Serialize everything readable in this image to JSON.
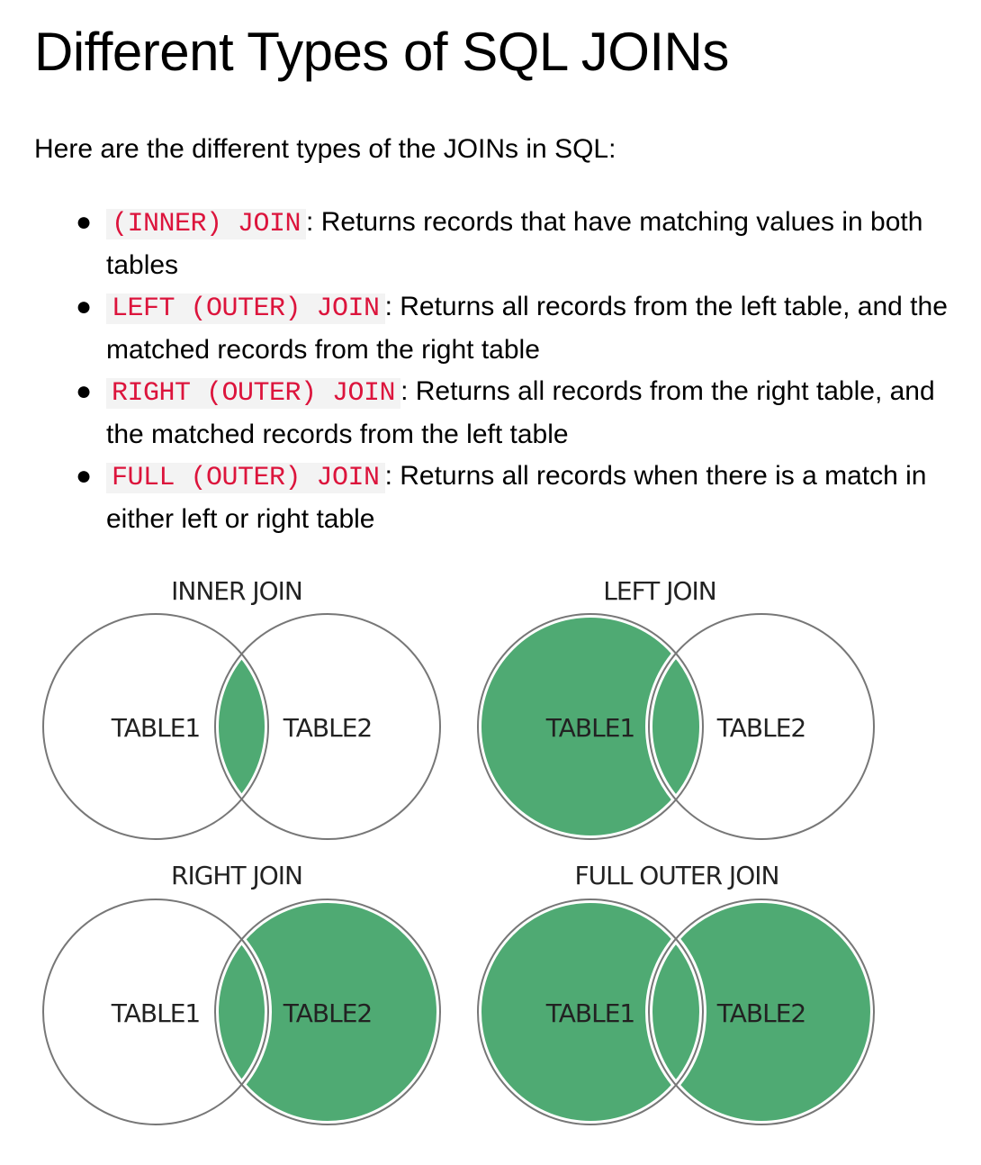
{
  "page_title": "Different Types of SQL JOINs",
  "intro": "Here are the different types of the JOINs in SQL:",
  "join_types": [
    {
      "code": "(INNER) JOIN",
      "description": ": Returns records that have matching values in both tables"
    },
    {
      "code": "LEFT (OUTER) JOIN",
      "description": ": Returns all records from the left table, and the matched records from the right table"
    },
    {
      "code": "RIGHT (OUTER) JOIN",
      "description": ": Returns all records from the right table, and the matched records from the left table"
    },
    {
      "code": "FULL (OUTER) JOIN",
      "description": ": Returns all records when there is a match in either left or right table"
    }
  ],
  "diagrams": {
    "inner": {
      "title": "INNER JOIN",
      "left_label": "TABLE1",
      "right_label": "TABLE2"
    },
    "left": {
      "title": "LEFT JOIN",
      "left_label": "TABLE1",
      "right_label": "TABLE2"
    },
    "right": {
      "title": "RIGHT JOIN",
      "left_label": "TABLE1",
      "right_label": "TABLE2"
    },
    "full": {
      "title": "FULL OUTER JOIN",
      "left_label": "TABLE1",
      "right_label": "TABLE2"
    }
  },
  "colors": {
    "fill": "#4faa73",
    "stroke": "#777777",
    "code_text": "#dc143c",
    "code_background": "#f3f3f3"
  }
}
